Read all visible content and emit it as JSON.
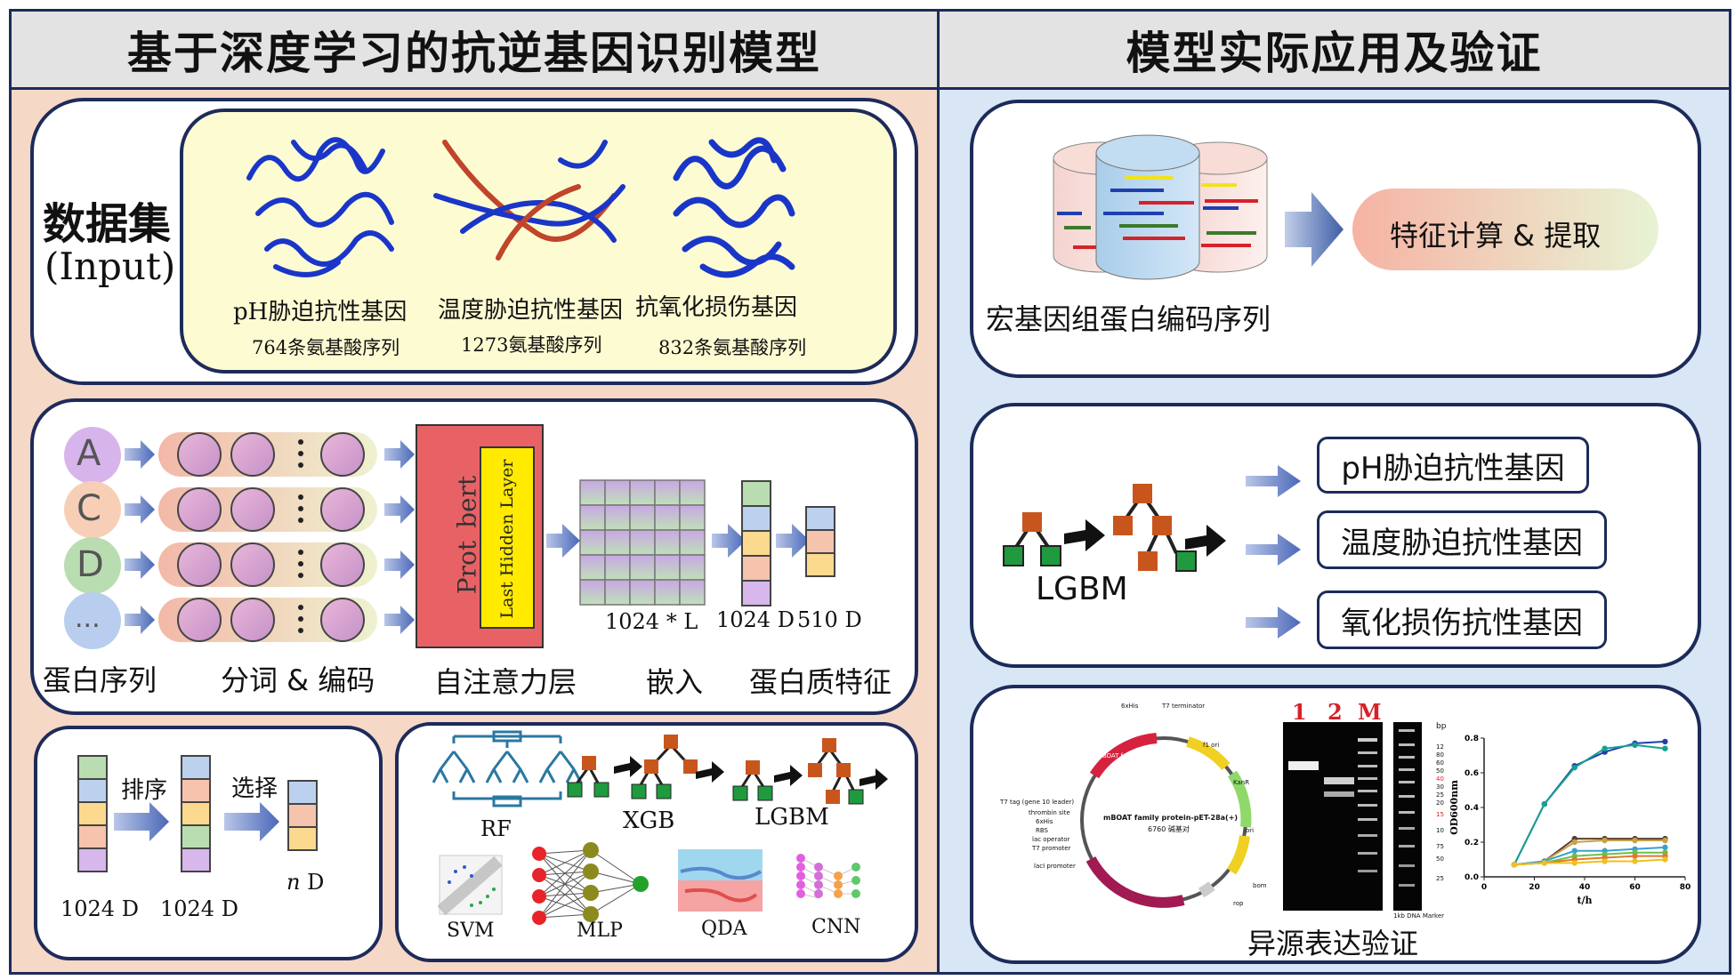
{
  "left_panel": {
    "title": "基于深度学习的抗逆基因识别模型",
    "dataset": {
      "title_line1": "数据集",
      "title_line2": "(Input)",
      "proteins": [
        {
          "name": "pH胁迫抗性基因",
          "count": "764条氨基酸序列"
        },
        {
          "name": "温度胁迫抗性基因",
          "count": "1273氨基酸序列"
        },
        {
          "name": "抗氧化损伤基因",
          "count": "832条氨基酸序列"
        }
      ]
    },
    "pipeline": {
      "letters": [
        "A",
        "C",
        "D",
        "..."
      ],
      "model_name": "Prot_bert",
      "hidden_layer": "Last Hidden Layer",
      "matrix_label": "1024 * L",
      "vec1_label": "1024 D",
      "vec2_label": "510 D",
      "stage_labels": [
        "蛋白序列",
        "分词 & 编码",
        "自注意力层",
        "嵌入",
        "蛋白质特征"
      ]
    },
    "feature_selection": {
      "sort_label": "排序",
      "select_label": "选择",
      "dim1": "1024 D",
      "dim2": "1024 D",
      "dim3_italic": "n",
      "dim3_rest": " D"
    },
    "models": [
      "RF",
      "XGB",
      "LGBM",
      "SVM",
      "MLP",
      "QDA",
      "CNN"
    ]
  },
  "right_panel": {
    "title": "模型实际应用及验证",
    "metagenome": {
      "caption": "宏基因组蛋白编码序列",
      "feature_pill": "特征计算 & 提取"
    },
    "classifier": {
      "model": "LGBM",
      "outputs": [
        "pH胁迫抗性基因",
        "温度胁迫抗性基因",
        "氧化损伤抗性基因"
      ]
    },
    "validation": {
      "caption": "异源表达验证",
      "plasmid": {
        "name": "mBOAT family protein-pET-28a(+)",
        "size": "6760 碱基对",
        "features": [
          "6xHis",
          "T7 terminator",
          "f1 ori",
          "KanR",
          "ori",
          "bom",
          "rop",
          "lacI",
          "lacI promoter",
          "T7 promoter",
          "lac operator",
          "RBS",
          "6xHis",
          "thrombin site",
          "T7 tag (gene 10 leader)",
          "mBOAT family protein"
        ]
      },
      "gel": {
        "lanes": [
          "1",
          "2",
          "M"
        ],
        "unit": "bp",
        "ladder": [
          "12",
          "80",
          "60",
          "50",
          "40",
          "30",
          "25",
          "20",
          "15",
          "10",
          "75",
          "50",
          "25"
        ],
        "footer": "1kb DNA Marker"
      },
      "growth_chart": {
        "ylabel": "OD600nm",
        "xlabel": "t/h",
        "x_ticks": [
          "0",
          "20",
          "40",
          "60",
          "80"
        ],
        "y_ticks": [
          "0.0",
          "0.2",
          "0.4",
          "0.6",
          "0.8"
        ]
      }
    }
  },
  "chart_data": {
    "type": "line",
    "xlabel": "t/h",
    "ylabel": "OD600nm",
    "xlim": [
      0,
      80
    ],
    "ylim": [
      0,
      0.8
    ],
    "x": [
      12,
      24,
      36,
      48,
      60,
      72
    ],
    "series": [
      {
        "color": "#1f3fae",
        "values": [
          0.07,
          0.42,
          0.64,
          0.72,
          0.77,
          0.78
        ]
      },
      {
        "color": "#18a090",
        "values": [
          0.07,
          0.42,
          0.63,
          0.74,
          0.76,
          0.74
        ]
      },
      {
        "color": "#5a3f2a",
        "values": [
          0.07,
          0.09,
          0.22,
          0.22,
          0.22,
          0.22
        ]
      },
      {
        "color": "#c7a14a",
        "values": [
          0.07,
          0.09,
          0.2,
          0.21,
          0.21,
          0.21
        ]
      },
      {
        "color": "#3aa0d0",
        "values": [
          0.07,
          0.09,
          0.15,
          0.15,
          0.16,
          0.17
        ]
      },
      {
        "color": "#6cc04a",
        "values": [
          0.07,
          0.08,
          0.12,
          0.13,
          0.14,
          0.14
        ]
      },
      {
        "color": "#e07b28",
        "values": [
          0.07,
          0.08,
          0.1,
          0.11,
          0.12,
          0.12
        ]
      },
      {
        "color": "#f0c020",
        "values": [
          0.07,
          0.08,
          0.08,
          0.09,
          0.09,
          0.1
        ]
      }
    ]
  }
}
